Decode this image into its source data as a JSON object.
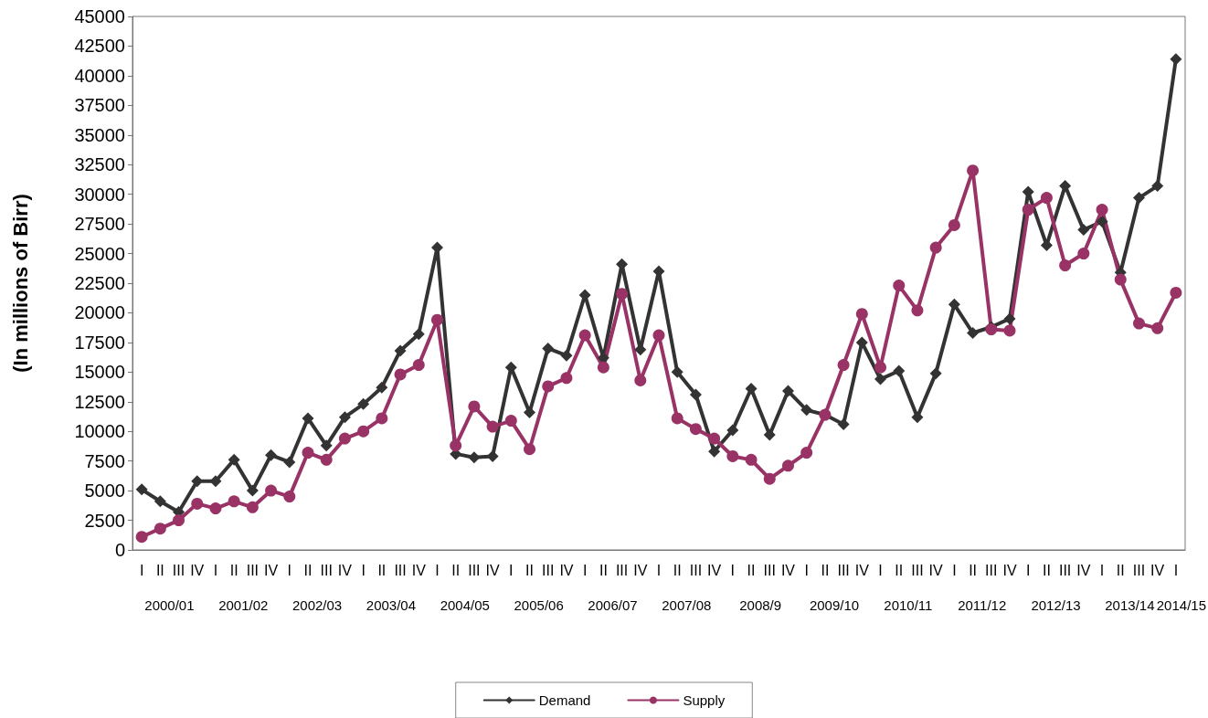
{
  "chart_data": {
    "type": "line",
    "ylabel": "(In millions of Birr)",
    "categories": [
      "I",
      "II",
      "III",
      "IV",
      "I",
      "II",
      "III",
      "IV",
      "I",
      "II",
      "III",
      "IV",
      "I",
      "II",
      "III",
      "IV",
      "I",
      "II",
      "III",
      "IV",
      "I",
      "II",
      "III",
      "IV",
      "I",
      "II",
      "III",
      "IV",
      "I",
      "II",
      "III",
      "IV",
      "I",
      "II",
      "III",
      "IV",
      "I",
      "II",
      "III",
      "IV",
      "I",
      "II",
      "III",
      "IV",
      "I",
      "II",
      "III",
      "IV",
      "I",
      "II",
      "III",
      "IV",
      "I",
      "II",
      "III",
      "IV",
      "I"
    ],
    "annotations": [
      "2000/01",
      "2001/02",
      "2002/03",
      "2003/04",
      "2004/05",
      "2005/06",
      "2006/07",
      "2007/08",
      "2008/9",
      "2009/10",
      "2010/11",
      "2011/12",
      "2012/13",
      "2013/14",
      "2014/15"
    ],
    "series": [
      {
        "name": "Demand",
        "color": "#333333",
        "marker": "diamond",
        "values": [
          5100,
          4100,
          3200,
          5800,
          5800,
          7600,
          5000,
          8000,
          7400,
          11100,
          8800,
          11200,
          12300,
          13700,
          16800,
          18200,
          25500,
          8100,
          7800,
          7900,
          15400,
          11600,
          17000,
          16400,
          21500,
          16200,
          24100,
          16900,
          23500,
          15000,
          13100,
          8300,
          10100,
          13600,
          9700,
          13400,
          11800,
          11400,
          10600,
          17500,
          14400,
          15100,
          11200,
          14900,
          20700,
          18300,
          18800,
          19500,
          30200,
          25700,
          30700,
          27000,
          27700,
          23400,
          29700,
          30700,
          41400
        ]
      },
      {
        "name": "Supply",
        "color": "#993366",
        "marker": "circle",
        "values": [
          1100,
          1800,
          2500,
          3900,
          3500,
          4100,
          3600,
          5000,
          4500,
          8200,
          7600,
          9400,
          10000,
          11100,
          14800,
          15600,
          19400,
          8800,
          12100,
          10400,
          10900,
          8500,
          13800,
          14500,
          18100,
          15400,
          21600,
          14300,
          18100,
          11100,
          10200,
          9400,
          7900,
          7600,
          6000,
          7100,
          8200,
          11400,
          15600,
          19900,
          15400,
          22300,
          20200,
          25500,
          27400,
          32000,
          18600,
          18500,
          28700,
          29700,
          24000,
          25000,
          28700,
          22800,
          19100,
          18700,
          21700
        ]
      }
    ],
    "ylim": [
      0,
      45000
    ],
    "yticks": [
      0,
      2500,
      5000,
      7500,
      10000,
      12500,
      15000,
      17500,
      20000,
      22500,
      25000,
      27500,
      30000,
      32500,
      35000,
      37500,
      40000,
      42500,
      45000
    ],
    "grid": false,
    "legend": "bottom",
    "line_style": "solid"
  }
}
